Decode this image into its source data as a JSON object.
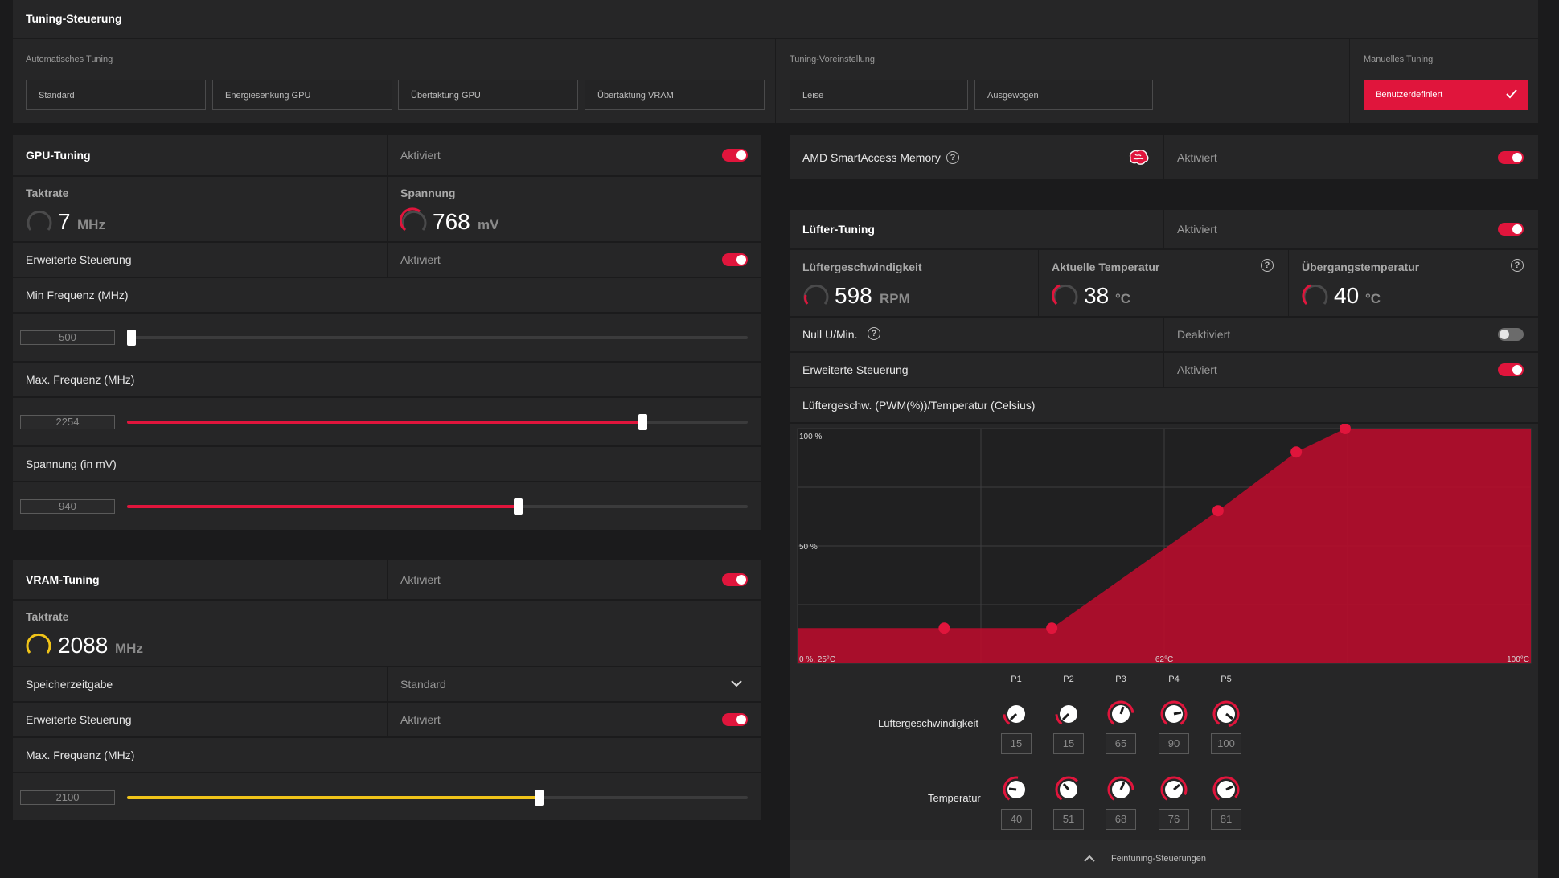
{
  "header": {
    "title": "Tuning-Steuerung"
  },
  "auto_tuning": {
    "label": "Automatisches Tuning",
    "options": [
      "Standard",
      "Energiesenkung GPU",
      "Übertaktung GPU",
      "Übertaktung VRAM"
    ]
  },
  "preset": {
    "label": "Tuning-Voreinstellung",
    "options": [
      "Leise",
      "Ausgewogen"
    ]
  },
  "manual": {
    "label": "Manuelles Tuning",
    "button": "Benutzerdefiniert"
  },
  "gpu": {
    "title": "GPU-Tuning",
    "state": "Aktiviert",
    "clock": {
      "label": "Taktrate",
      "value": "7",
      "unit": "MHz"
    },
    "voltage": {
      "label": "Spannung",
      "value": "768",
      "unit": "mV"
    },
    "advanced": {
      "label": "Erweiterte Steuerung",
      "state": "Aktiviert"
    },
    "min_freq": {
      "label": "Min Frequenz (MHz)",
      "value": "500",
      "fraction": 0.0
    },
    "max_freq": {
      "label": "Max. Frequenz (MHz)",
      "value": "2254",
      "fraction": 0.83
    },
    "volt_slider": {
      "label": "Spannung (in mV)",
      "value": "940",
      "fraction": 0.63
    }
  },
  "vram": {
    "title": "VRAM-Tuning",
    "state": "Aktiviert",
    "clock": {
      "label": "Taktrate",
      "value": "2088",
      "unit": "MHz"
    },
    "timing": {
      "label": "Speicherzeitgabe",
      "value": "Standard"
    },
    "advanced": {
      "label": "Erweiterte Steuerung",
      "state": "Aktiviert"
    },
    "max_freq": {
      "label": "Max. Frequenz (MHz)",
      "value": "2100",
      "fraction": 0.66
    }
  },
  "sam": {
    "title": "AMD SmartAccess Memory",
    "state": "Aktiviert"
  },
  "fan": {
    "title": "Lüfter-Tuning",
    "state": "Aktiviert",
    "speed": {
      "label": "Lüftergeschwindigkeit",
      "value": "598",
      "unit": "RPM"
    },
    "temp": {
      "label": "Aktuelle Temperatur",
      "value": "38",
      "unit": "°C"
    },
    "junction": {
      "label": "Übergangstemperatur",
      "value": "40",
      "unit": "°C"
    },
    "zero_rpm": {
      "label": "Null U/Min.",
      "state": "Deaktiviert"
    },
    "advanced": {
      "label": "Erweiterte Steuerung",
      "state": "Aktiviert"
    },
    "curve_title": "Lüftergeschw. (PWM(%))/Temperatur (Celsius)",
    "points": [
      "P1",
      "P2",
      "P3",
      "P4",
      "P5"
    ],
    "speed_label": "Lüftergeschwindigkeit",
    "speed_values": [
      "15",
      "15",
      "65",
      "90",
      "100"
    ],
    "temp_label": "Temperatur",
    "temp_values": [
      "40",
      "51",
      "68",
      "76",
      "81"
    ],
    "footer": "Feintuning-Steuerungen"
  },
  "chart_data": {
    "type": "area",
    "x": [
      25,
      40,
      51,
      68,
      76,
      81,
      100
    ],
    "y": [
      15,
      15,
      15,
      65,
      90,
      100,
      100
    ],
    "ytick_labels": [
      "100 %",
      "50 %"
    ],
    "xtick_labels": [
      "0 %, 25°C",
      "62°C",
      "100°C"
    ],
    "xlim": [
      25,
      100
    ],
    "ylim": [
      0,
      100
    ],
    "grid": true,
    "colors": {
      "fill": "#b40d2c",
      "point": "#e0153c"
    }
  }
}
